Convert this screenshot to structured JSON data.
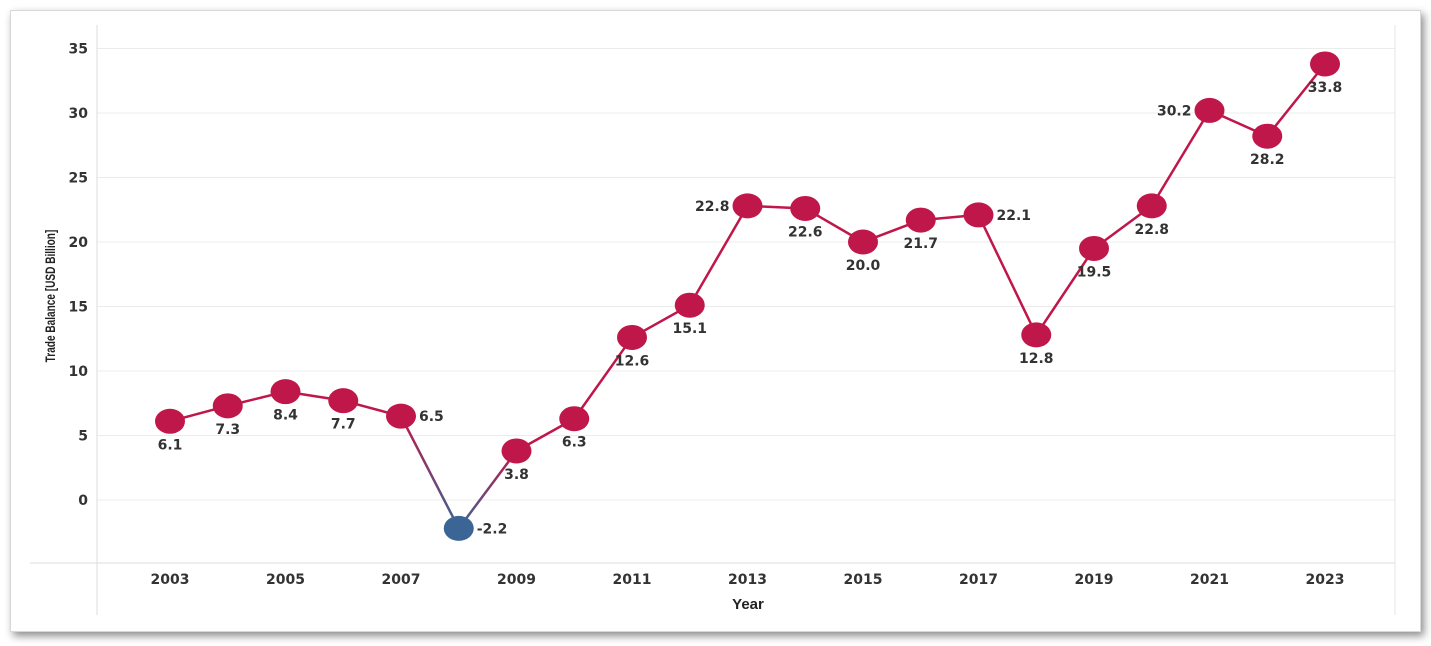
{
  "chart_data": {
    "type": "line",
    "xlabel": "Year",
    "ylabel": "Trade Balance [USD Billion]",
    "ylim": [
      -5,
      37
    ],
    "yticks": [
      0,
      5,
      10,
      15,
      20,
      25,
      30,
      35
    ],
    "xticks": [
      2003,
      2005,
      2007,
      2009,
      2011,
      2013,
      2015,
      2017,
      2019,
      2021,
      2023
    ],
    "grid": true,
    "series": [
      {
        "x": [
          2003,
          2004,
          2005,
          2006,
          2007,
          2008,
          2009,
          2010,
          2011,
          2012,
          2013,
          2014,
          2015,
          2016,
          2017,
          2018,
          2019,
          2020,
          2021,
          2022,
          2023
        ],
        "values": [
          6.1,
          7.3,
          8.4,
          7.7,
          6.5,
          -2.2,
          3.8,
          6.3,
          12.6,
          15.1,
          22.8,
          22.6,
          20.0,
          21.7,
          22.1,
          12.8,
          19.5,
          22.8,
          30.2,
          28.2,
          33.8
        ],
        "labels": [
          "6.1",
          "7.3",
          "8.4",
          "7.7",
          "6.5",
          "-2.2",
          "3.8",
          "6.3",
          "12.6",
          "15.1",
          "22.8",
          "22.6",
          "20.0",
          "21.7",
          "22.1",
          "12.8",
          "19.5",
          "22.8",
          "30.2",
          "28.2",
          "33.8"
        ]
      }
    ],
    "colors": {
      "positive": "#c0174a",
      "negative": "#3b6594"
    }
  }
}
